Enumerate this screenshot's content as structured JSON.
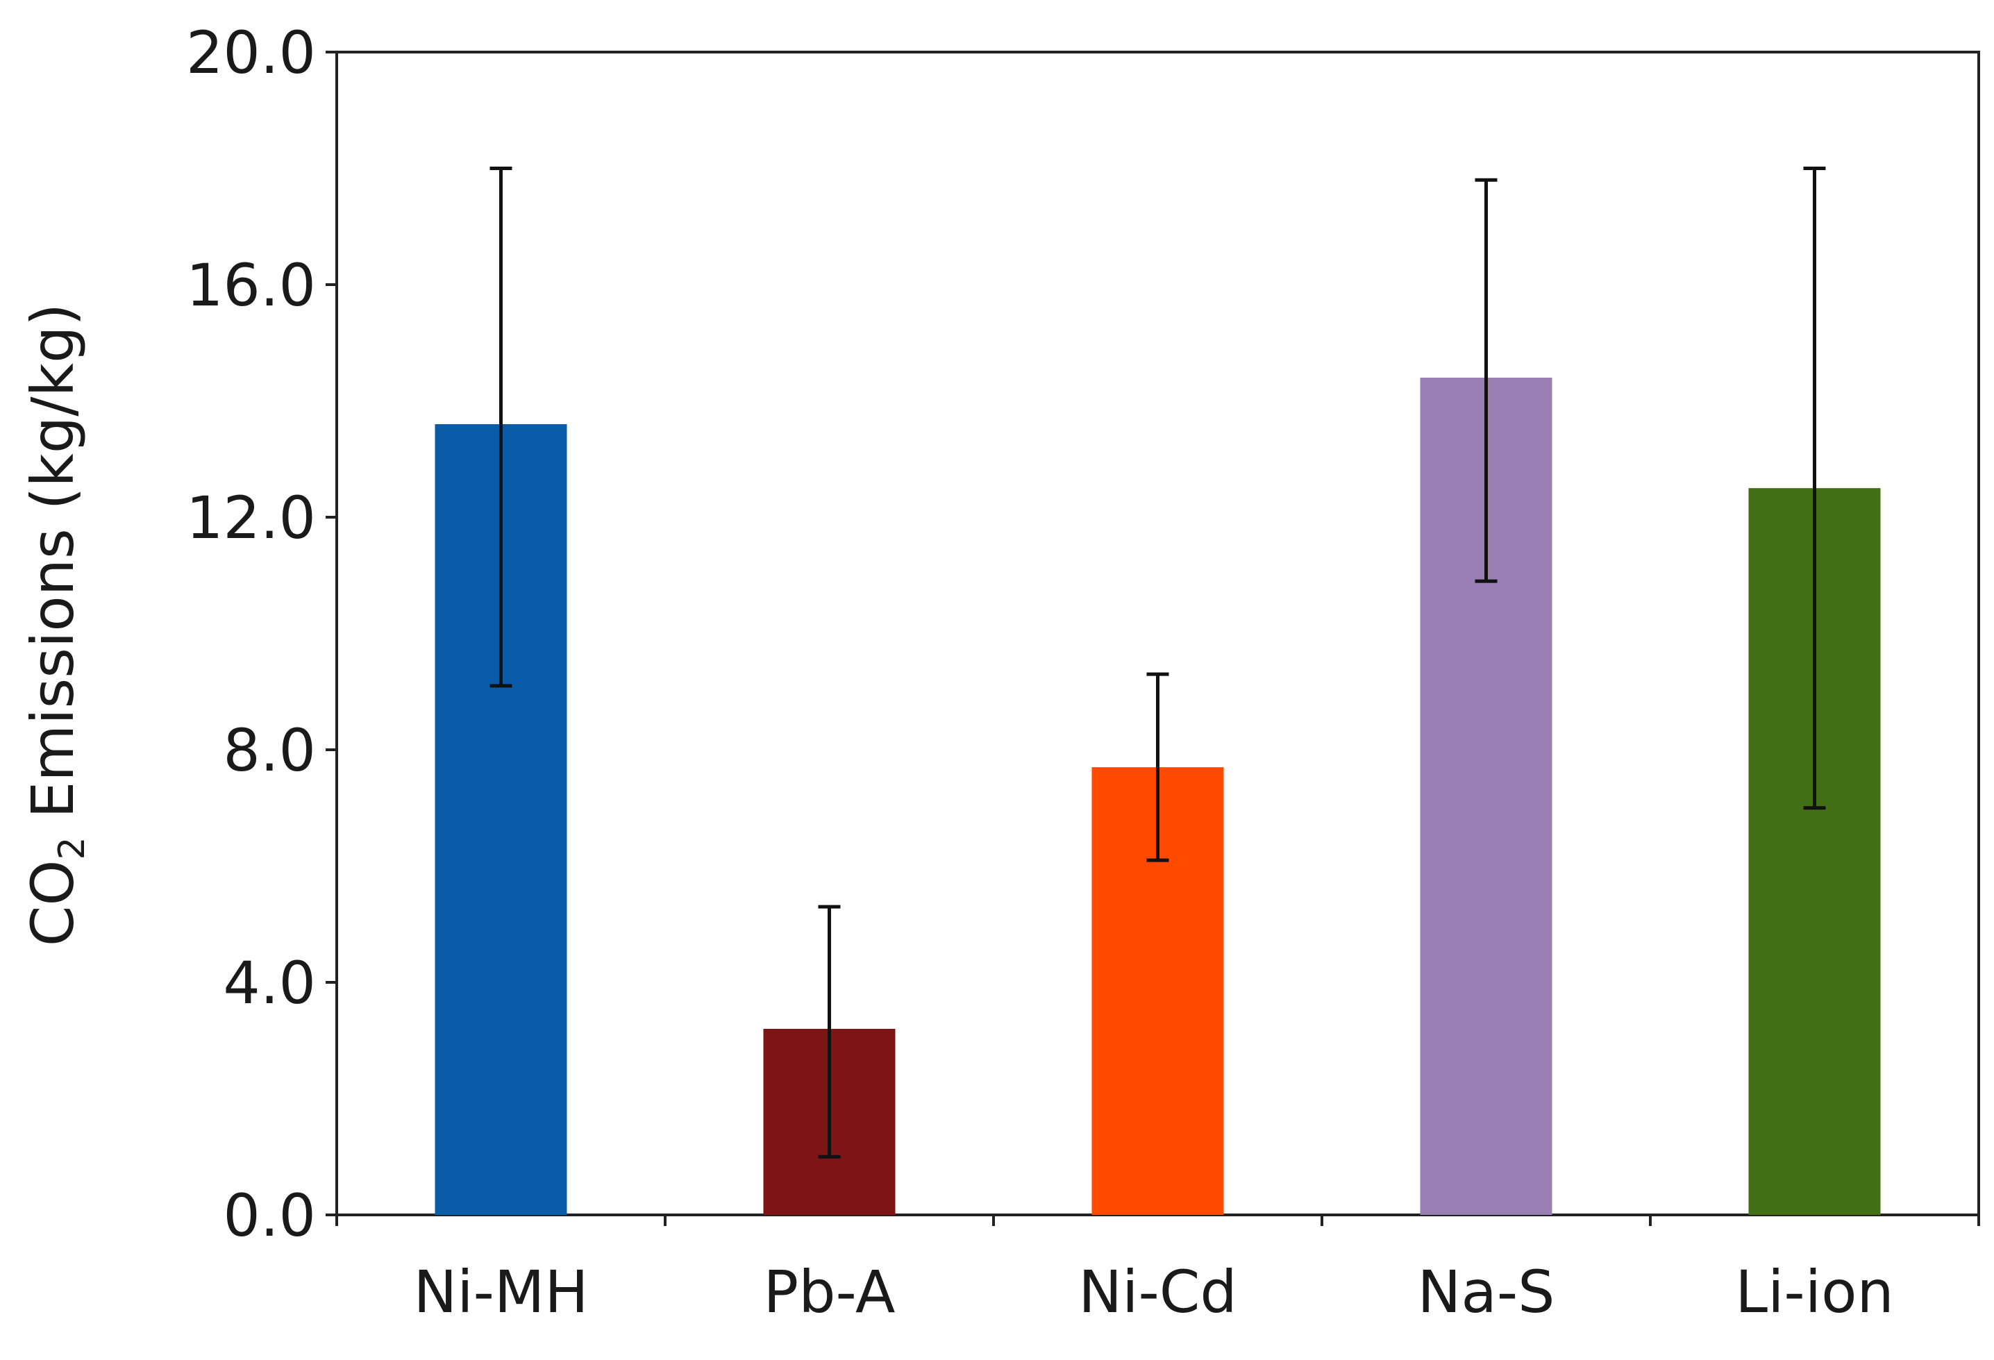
{
  "chart_data": {
    "type": "bar",
    "title": "",
    "xlabel": "",
    "ylabel": {
      "prefix": "CO",
      "subscript": "2",
      "suffix": " Emissions (kg/kg)"
    },
    "categories": [
      "Ni-MH",
      "Pb-A",
      "Ni-Cd",
      "Na-S",
      "Li-ion"
    ],
    "values": [
      13.6,
      3.2,
      7.7,
      14.4,
      12.5
    ],
    "error_low": [
      9.1,
      1.0,
      6.1,
      10.9,
      7.0
    ],
    "error_high": [
      18.0,
      5.3,
      9.3,
      17.8,
      18.0
    ],
    "colors": [
      "#0a5ca8",
      "#7d1416",
      "#ff4a00",
      "#9a7fb5",
      "#437016"
    ],
    "ylim": [
      0,
      20
    ],
    "yticks": [
      "0.0",
      "4.0",
      "8.0",
      "12.0",
      "16.0",
      "20.0"
    ],
    "grid": false,
    "legend": false
  }
}
